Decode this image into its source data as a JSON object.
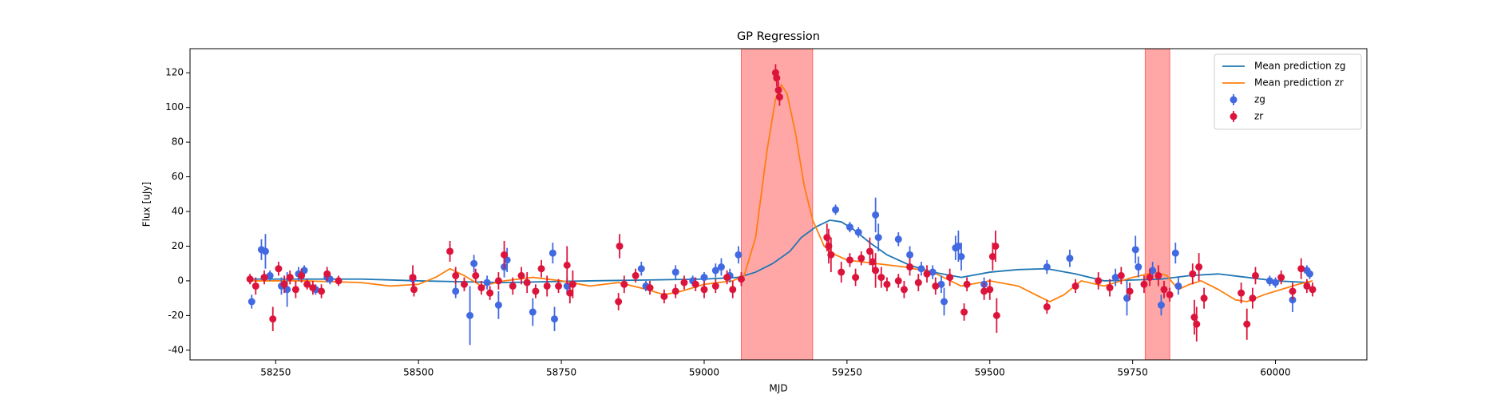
{
  "chart_data": {
    "type": "line",
    "title": "GP Regression",
    "x_label": "MJD",
    "y_label": "Flux [uJy]",
    "xlim": [
      58100,
      60160
    ],
    "ylim": [
      -45.6,
      133.9
    ],
    "xticks": [
      58250,
      58500,
      58750,
      59000,
      59250,
      59500,
      59750,
      60000
    ],
    "yticks": [
      -40,
      -20,
      0,
      20,
      40,
      60,
      80,
      100,
      120
    ],
    "grid": false,
    "legend": "upper right",
    "shaded_regions": [
      [
        59065,
        59190
      ],
      [
        59772,
        59815
      ]
    ],
    "shaded_color": "#ff0000",
    "series": [
      {
        "name": "Mean prediction zg",
        "type": "line",
        "color": "#1f77b4",
        "x": [
          58200,
          58300,
          58400,
          58500,
          58650,
          58800,
          58900,
          59000,
          59060,
          59090,
          59120,
          59150,
          59170,
          59195,
          59220,
          59240,
          59260,
          59290,
          59320,
          59360,
          59400,
          59450,
          59500,
          59550,
          59600,
          59650,
          59700,
          59750,
          59800,
          59850,
          59900,
          59950,
          60000,
          60060
        ],
        "values": [
          1,
          1,
          1,
          0,
          -1,
          0,
          0.5,
          1,
          2,
          5,
          10,
          17,
          25,
          31,
          35,
          34,
          30,
          22,
          15,
          9,
          5,
          2,
          5,
          6.5,
          7,
          4,
          0,
          0.5,
          1,
          3,
          4,
          2,
          0,
          -1
        ]
      },
      {
        "name": "Mean prediction zr",
        "type": "line",
        "color": "#ff7f0e",
        "x": [
          58200,
          58300,
          58400,
          58450,
          58500,
          58530,
          58555,
          58580,
          58610,
          58650,
          58700,
          58750,
          58800,
          58850,
          58900,
          58930,
          58960,
          59000,
          59050,
          59070,
          59090,
          59110,
          59125,
          59135,
          59145,
          59160,
          59175,
          59190,
          59210,
          59230,
          59250,
          59300,
          59350,
          59400,
          59450,
          59500,
          59550,
          59580,
          59605,
          59630,
          59660,
          59700,
          59750,
          59790,
          59810,
          59830,
          59850,
          59870,
          59900,
          59930,
          59950,
          59980,
          60010,
          60040,
          60065
        ],
        "values": [
          0,
          0,
          -1,
          -3,
          -2,
          2,
          7,
          3,
          -3,
          0,
          2,
          0,
          -3,
          -1,
          -5,
          -8,
          -6,
          -2,
          0,
          3,
          25,
          75,
          105,
          113,
          108,
          85,
          55,
          35,
          20,
          15,
          12,
          10,
          8,
          5,
          -3,
          0,
          -3,
          -8,
          -12,
          -8,
          0,
          -3,
          2,
          5,
          3,
          -5,
          -2,
          0,
          -5,
          -11,
          -12,
          -8,
          -5,
          -2,
          0
        ]
      },
      {
        "name": "zg",
        "type": "errorbar",
        "color": "#4169e1",
        "x": [
          58208,
          58225,
          58232,
          58240,
          58260,
          58270,
          58290,
          58300,
          58320,
          58340,
          58345,
          58490,
          58565,
          58590,
          58597,
          58620,
          58640,
          58650,
          58655,
          58700,
          58735,
          58738,
          58760,
          58890,
          58898,
          58950,
          58980,
          59000,
          59020,
          59030,
          59045,
          59060,
          59230,
          59255,
          59270,
          59300,
          59305,
          59340,
          59360,
          59380,
          59400,
          59415,
          59420,
          59440,
          59445,
          59450,
          59490,
          59600,
          59640,
          59720,
          59740,
          59755,
          59760,
          59785,
          59800,
          59825,
          59830,
          59990,
          60000,
          60030,
          60055,
          60060
        ],
        "values": [
          -12,
          18,
          17,
          3,
          -3,
          -5,
          4,
          6,
          -5,
          2,
          1,
          1,
          -6,
          -20,
          10,
          -1,
          -14,
          8,
          12,
          -18,
          16,
          -22,
          -3,
          7,
          -3,
          5,
          0,
          2,
          6,
          8,
          3,
          15,
          41,
          31,
          28,
          38,
          25,
          24,
          15,
          7,
          5,
          -2,
          -12,
          19,
          20,
          14,
          -2,
          8,
          13,
          2,
          -10,
          18,
          8,
          6,
          -14,
          16,
          -3,
          0,
          -1,
          -11,
          6,
          4
        ],
        "errors": [
          4,
          6,
          10,
          3,
          5,
          10,
          4,
          3,
          3,
          3,
          3,
          4,
          4,
          17,
          5,
          4,
          8,
          6,
          7,
          8,
          6,
          7,
          5,
          4,
          3,
          4,
          3,
          3,
          4,
          5,
          4,
          5,
          3,
          3,
          3,
          10,
          8,
          4,
          5,
          4,
          4,
          5,
          8,
          7,
          9,
          8,
          4,
          4,
          5,
          5,
          10,
          8,
          6,
          5,
          6,
          6,
          5,
          3,
          3,
          7,
          3,
          3
        ]
      },
      {
        "name": "zr",
        "type": "errorbar",
        "color": "#dc143c",
        "x": [
          58205,
          58215,
          58230,
          58245,
          58255,
          58265,
          58275,
          58285,
          58295,
          58305,
          58315,
          58330,
          58340,
          58360,
          58490,
          58492,
          58555,
          58565,
          58580,
          58600,
          58610,
          58625,
          58640,
          58650,
          58665,
          58680,
          58690,
          58705,
          58715,
          58725,
          58745,
          58760,
          58765,
          58770,
          58850,
          58852,
          58860,
          58880,
          58905,
          58930,
          58950,
          58965,
          58985,
          59000,
          59020,
          59040,
          59050,
          59065,
          59125,
          59127,
          59130,
          59132,
          59215,
          59218,
          59222,
          59240,
          59255,
          59265,
          59275,
          59290,
          59295,
          59300,
          59310,
          59320,
          59340,
          59350,
          59360,
          59375,
          59390,
          59405,
          59430,
          59455,
          59460,
          59490,
          59500,
          59505,
          59510,
          59512,
          59600,
          59650,
          59690,
          59710,
          59730,
          59745,
          59770,
          59780,
          59795,
          59805,
          59815,
          59855,
          59858,
          59862,
          59866,
          59875,
          59940,
          59950,
          59960,
          59965,
          60010,
          60030,
          60045,
          60055,
          60065
        ],
        "values": [
          1,
          -3,
          2,
          -22,
          7,
          -2,
          2,
          -5,
          3,
          -2,
          -4,
          -6,
          4,
          0,
          2,
          -5,
          17,
          3,
          -2,
          3,
          -4,
          -7,
          0,
          15,
          -3,
          3,
          -1,
          -6,
          7,
          -3,
          -3,
          9,
          -7,
          -2,
          -12,
          20,
          -2,
          3,
          -4,
          -9,
          -6,
          -1,
          -2,
          -5,
          -3,
          2,
          -5,
          1,
          120,
          117,
          110,
          106,
          25,
          20,
          15,
          5,
          12,
          2,
          13,
          17,
          11,
          6,
          2,
          -2,
          0,
          -5,
          8,
          -1,
          4,
          -3,
          2,
          -18,
          -2,
          -6,
          -5,
          14,
          20,
          -20,
          -15,
          -3,
          0,
          -4,
          3,
          -6,
          -2,
          2,
          3,
          -5,
          -8,
          4,
          -21,
          -25,
          8,
          -10,
          -7,
          -25,
          -10,
          3,
          2,
          -6,
          7,
          -3,
          -5
        ],
        "errors": [
          3,
          5,
          4,
          7,
          4,
          5,
          4,
          5,
          4,
          3,
          4,
          4,
          4,
          3,
          7,
          4,
          6,
          5,
          4,
          4,
          4,
          4,
          5,
          8,
          5,
          5,
          6,
          4,
          5,
          6,
          4,
          11,
          6,
          8,
          5,
          7,
          5,
          4,
          4,
          4,
          4,
          4,
          4,
          5,
          4,
          4,
          5,
          4,
          5,
          5,
          5,
          5,
          8,
          10,
          10,
          6,
          4,
          5,
          4,
          8,
          6,
          10,
          6,
          4,
          4,
          5,
          5,
          5,
          5,
          5,
          5,
          5,
          4,
          5,
          6,
          8,
          9,
          10,
          4,
          4,
          5,
          5,
          5,
          5,
          5,
          5,
          6,
          5,
          4,
          6,
          10,
          10,
          8,
          6,
          6,
          9,
          6,
          5,
          4,
          5,
          6,
          4,
          4
        ]
      }
    ]
  }
}
